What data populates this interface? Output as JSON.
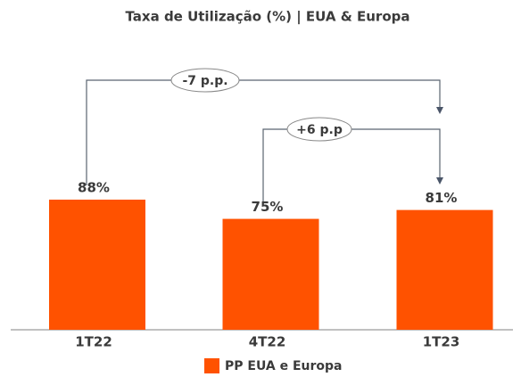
{
  "chart_data": {
    "type": "bar",
    "title": "Taxa de Utilização (%) | EUA & Europa",
    "categories": [
      "1T22",
      "4T22",
      "1T23"
    ],
    "series": [
      {
        "name": "PP EUA e Europa",
        "color": "#ff5200",
        "values": [
          88,
          75,
          81
        ],
        "value_labels": [
          "88%",
          "75%",
          "81%"
        ]
      }
    ],
    "annotations": [
      {
        "text": "-7 p.p."
      },
      {
        "text": "+6 p.p"
      }
    ],
    "legend": "bottom"
  }
}
